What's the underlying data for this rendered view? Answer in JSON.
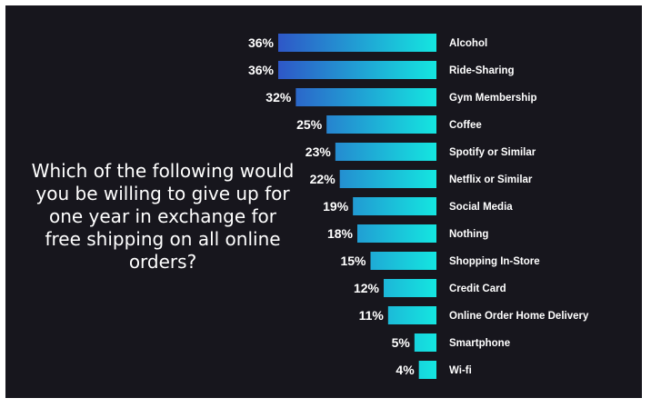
{
  "question": "Which of the following would you be willing to give up for one year in exchange for free shipping on all online orders?",
  "colors": {
    "background": "#17161d",
    "bar_gradient_start": "#2e57c7",
    "bar_gradient_end": "#14e6e0",
    "text": "#ffffff"
  },
  "chart_data": {
    "type": "bar",
    "orientation": "horizontal",
    "title": "",
    "xlabel": "",
    "ylabel": "",
    "grid": false,
    "legend": "none",
    "xlim": [
      0,
      100
    ],
    "categories": [
      "Alcohol",
      "Ride-Sharing",
      "Gym Membership",
      "Coffee",
      "Spotify or Similar",
      "Netflix or Similar",
      "Social Media",
      "Nothing",
      "Shopping In-Store",
      "Credit Card",
      "Online Order Home Delivery",
      "Smartphone",
      "Wi-fi"
    ],
    "values": [
      36,
      36,
      32,
      25,
      23,
      22,
      19,
      18,
      15,
      12,
      11,
      5,
      4
    ],
    "value_labels": [
      "36%",
      "36%",
      "32%",
      "25%",
      "23%",
      "22%",
      "19%",
      "18%",
      "15%",
      "12%",
      "11%",
      "5%",
      "4%"
    ]
  }
}
